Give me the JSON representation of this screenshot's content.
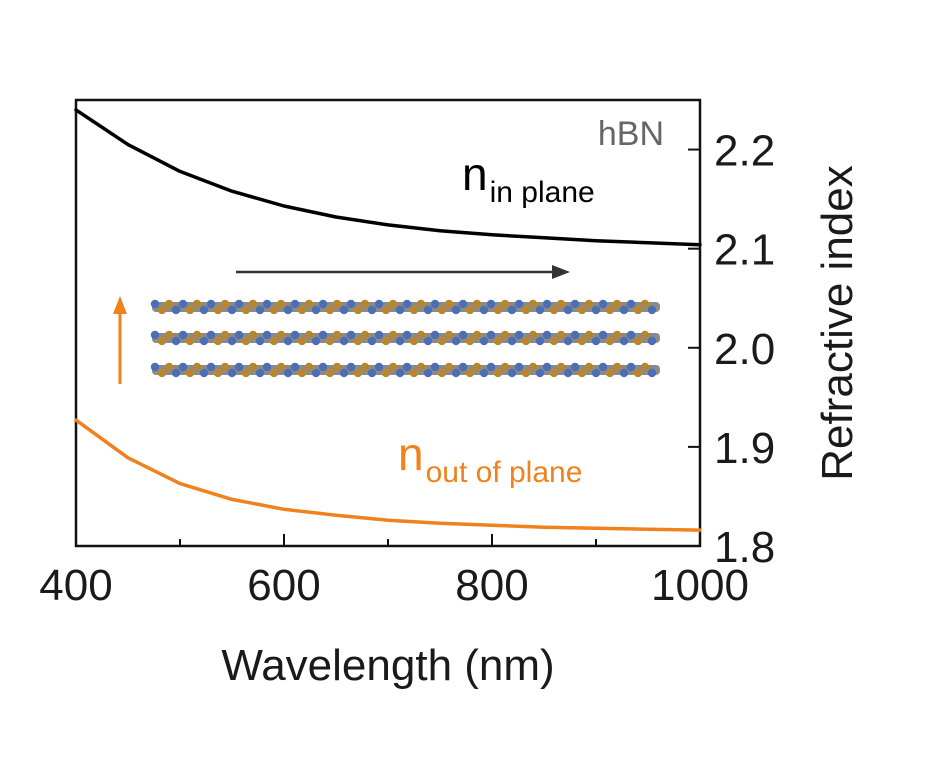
{
  "chart_data": {
    "type": "line",
    "title": "",
    "xlabel": "Wavelength (nm)",
    "ylabel": "Refractive index",
    "xlim": [
      400,
      1000
    ],
    "ylim": [
      1.8,
      2.25
    ],
    "x_ticks": [
      400,
      600,
      800,
      1000
    ],
    "x_minor_ticks": [
      500,
      700,
      900
    ],
    "y_ticks": [
      1.8,
      1.9,
      2.0,
      2.1,
      2.2
    ],
    "y_tick_labels": [
      "1.8",
      "1.9",
      "2.0",
      "2.1",
      "2.2"
    ],
    "y_axis_side": "right",
    "grid": false,
    "series": [
      {
        "name": "in plane",
        "color": "#000000",
        "x": [
          400,
          450,
          500,
          550,
          600,
          650,
          700,
          750,
          800,
          850,
          900,
          950,
          1000
        ],
        "y": [
          2.24,
          2.205,
          2.178,
          2.158,
          2.143,
          2.132,
          2.124,
          2.118,
          2.114,
          2.111,
          2.108,
          2.106,
          2.104
        ]
      },
      {
        "name": "out of plane",
        "color": "#f0821e",
        "x": [
          400,
          450,
          500,
          550,
          600,
          650,
          700,
          750,
          800,
          850,
          900,
          950,
          1000
        ],
        "y": [
          1.927,
          1.889,
          1.863,
          1.847,
          1.837,
          1.831,
          1.826,
          1.823,
          1.821,
          1.819,
          1.818,
          1.817,
          1.816
        ]
      }
    ],
    "annotations": {
      "material": "hBN",
      "in_plane_symbol": "n",
      "in_plane_subscript": "in plane",
      "out_plane_symbol": "n",
      "out_plane_subscript": "out of plane"
    },
    "inset": {
      "description_icon": "layered-crystal-structure-icon",
      "atom_colors": [
        "#4a6fb5",
        "#b8862e"
      ],
      "in_plane_arrow_color": "#333333",
      "out_plane_arrow_color": "#f0821e"
    }
  }
}
